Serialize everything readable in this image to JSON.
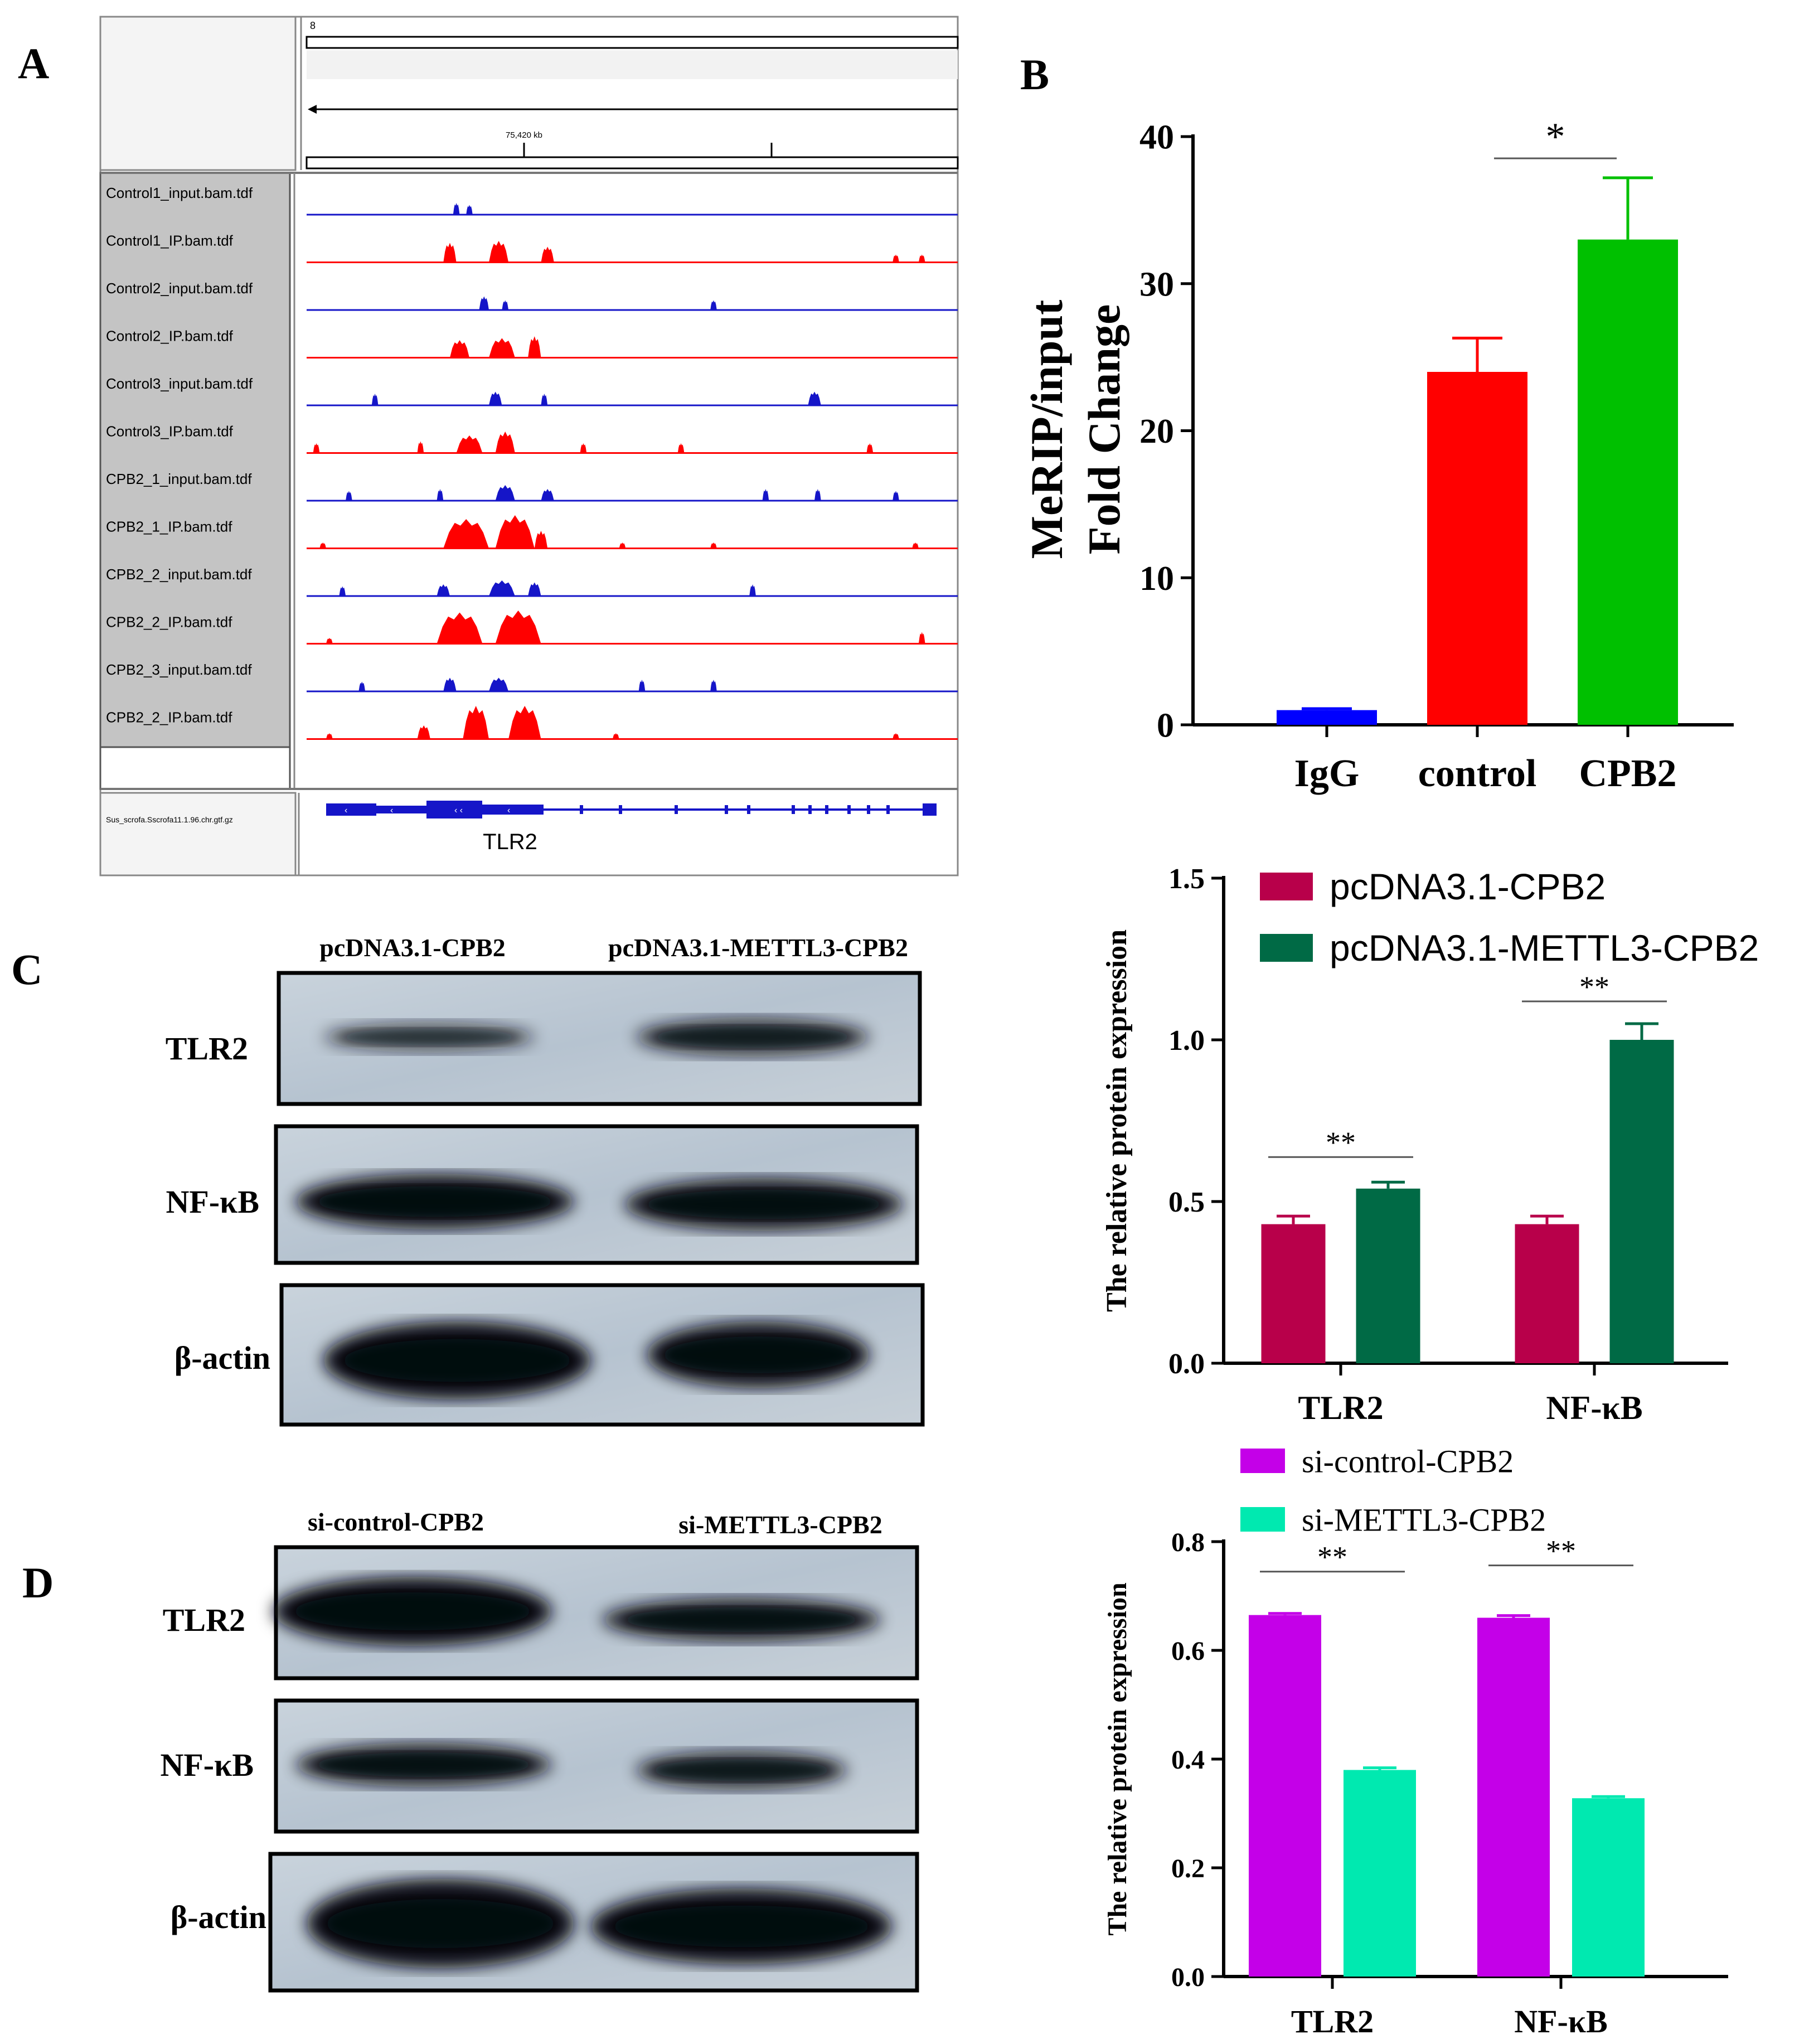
{
  "panels": {
    "a": "A",
    "b": "B",
    "c": "C",
    "d": "D"
  },
  "colors": {
    "igv_blue": "#1515c8",
    "igv_red": "#ff0000",
    "igv_gray": "#c4c4c4",
    "b_igg": "#0000ff",
    "b_control": "#ff0000",
    "b_cpb2": "#00c000",
    "crimson": "#b8004a",
    "dark_green": "#006a45",
    "magenta": "#c400e8",
    "aqua": "#00e9b0"
  },
  "igv": {
    "chrom": "8",
    "ruler": "75,420 kb",
    "gene_track": "Sus_scrofa.Sscrofa11.1.96.chr.gtf.gz",
    "gene": "TLR2",
    "tracks": [
      {
        "label": "Control1_input.bam.tdf",
        "color": "blue",
        "peaks": [
          [
            0.225,
            0.01,
            0.3
          ],
          [
            0.245,
            0.01,
            0.25
          ]
        ]
      },
      {
        "label": "Control1_IP.bam.tdf",
        "color": "red",
        "peaks": [
          [
            0.21,
            0.02,
            0.5
          ],
          [
            0.28,
            0.03,
            0.55
          ],
          [
            0.36,
            0.02,
            0.4
          ],
          [
            0.9,
            0.01,
            0.2
          ],
          [
            0.94,
            0.01,
            0.2
          ]
        ]
      },
      {
        "label": "Control2_input.bam.tdf",
        "color": "blue",
        "peaks": [
          [
            0.265,
            0.015,
            0.35
          ],
          [
            0.3,
            0.01,
            0.25
          ],
          [
            0.62,
            0.01,
            0.25
          ]
        ]
      },
      {
        "label": "Control2_IP.bam.tdf",
        "color": "red",
        "peaks": [
          [
            0.22,
            0.03,
            0.45
          ],
          [
            0.28,
            0.04,
            0.5
          ],
          [
            0.34,
            0.02,
            0.55
          ]
        ]
      },
      {
        "label": "Control3_input.bam.tdf",
        "color": "blue",
        "peaks": [
          [
            0.1,
            0.01,
            0.3
          ],
          [
            0.28,
            0.02,
            0.35
          ],
          [
            0.36,
            0.01,
            0.3
          ],
          [
            0.77,
            0.02,
            0.35
          ]
        ]
      },
      {
        "label": "Control3_IP.bam.tdf",
        "color": "red",
        "peaks": [
          [
            0.01,
            0.01,
            0.25
          ],
          [
            0.17,
            0.01,
            0.3
          ],
          [
            0.23,
            0.04,
            0.45
          ],
          [
            0.29,
            0.03,
            0.55
          ],
          [
            0.42,
            0.01,
            0.25
          ],
          [
            0.57,
            0.01,
            0.25
          ],
          [
            0.86,
            0.01,
            0.25
          ]
        ]
      },
      {
        "label": "CPB2_1_input.bam.tdf",
        "color": "blue",
        "peaks": [
          [
            0.06,
            0.01,
            0.25
          ],
          [
            0.2,
            0.01,
            0.3
          ],
          [
            0.29,
            0.03,
            0.4
          ],
          [
            0.36,
            0.02,
            0.3
          ],
          [
            0.7,
            0.01,
            0.3
          ],
          [
            0.78,
            0.01,
            0.3
          ],
          [
            0.9,
            0.01,
            0.25
          ]
        ]
      },
      {
        "label": "CPB2_1_IP.bam.tdf",
        "color": "red",
        "peaks": [
          [
            0.02,
            0.01,
            0.15
          ],
          [
            0.21,
            0.07,
            0.75
          ],
          [
            0.29,
            0.06,
            0.85
          ],
          [
            0.35,
            0.02,
            0.45
          ],
          [
            0.48,
            0.01,
            0.15
          ],
          [
            0.62,
            0.01,
            0.15
          ],
          [
            0.93,
            0.01,
            0.15
          ]
        ]
      },
      {
        "label": "CPB2_2_input.bam.tdf",
        "color": "blue",
        "peaks": [
          [
            0.05,
            0.01,
            0.25
          ],
          [
            0.2,
            0.02,
            0.3
          ],
          [
            0.28,
            0.04,
            0.4
          ],
          [
            0.34,
            0.02,
            0.35
          ],
          [
            0.68,
            0.01,
            0.3
          ]
        ]
      },
      {
        "label": "CPB2_2_IP.bam.tdf",
        "color": "red",
        "peaks": [
          [
            0.03,
            0.01,
            0.15
          ],
          [
            0.2,
            0.07,
            0.8
          ],
          [
            0.29,
            0.07,
            0.85
          ],
          [
            0.94,
            0.01,
            0.3
          ]
        ]
      },
      {
        "label": "CPB2_3_input.bam.tdf",
        "color": "blue",
        "peaks": [
          [
            0.08,
            0.01,
            0.25
          ],
          [
            0.21,
            0.02,
            0.35
          ],
          [
            0.28,
            0.03,
            0.35
          ],
          [
            0.51,
            0.01,
            0.3
          ],
          [
            0.62,
            0.01,
            0.3
          ]
        ]
      },
      {
        "label": "CPB2_2_IP.bam.tdf",
        "color": "red",
        "peaks": [
          [
            0.03,
            0.01,
            0.15
          ],
          [
            0.17,
            0.02,
            0.35
          ],
          [
            0.24,
            0.04,
            0.85
          ],
          [
            0.31,
            0.05,
            0.85
          ],
          [
            0.47,
            0.01,
            0.15
          ],
          [
            0.9,
            0.01,
            0.15
          ]
        ]
      }
    ]
  },
  "blots": {
    "c_labels": [
      "pcDNA3.1-CPB2",
      "pcDNA3.1-METTL3-CPB2"
    ],
    "c_rows": [
      "TLR2",
      "NF-κB",
      "β-actin"
    ],
    "d_labels": [
      "si-control-CPB2",
      "si-METTL3-CPB2"
    ],
    "d_rows": [
      "TLR2",
      "NF-κB",
      "β-actin"
    ]
  },
  "chart_data": [
    {
      "panel": "B",
      "type": "bar",
      "categories": [
        "IgG",
        "control",
        "CPB2"
      ],
      "values": [
        1,
        24,
        33
      ],
      "errors": [
        0.1,
        2.3,
        4.2
      ],
      "ylabel": "MeRIP/input",
      "ylabel2": "Fold Change",
      "ylim": [
        0,
        40
      ],
      "yticks": [
        0,
        10,
        20,
        30,
        40
      ],
      "annotations": [
        {
          "text": "*",
          "between": [
            "control",
            "CPB2"
          ]
        }
      ]
    },
    {
      "panel": "C",
      "type": "bar",
      "categories": [
        "TLR2",
        "NF-κB"
      ],
      "series": [
        {
          "name": "pcDNA3.1-CPB2",
          "values": [
            0.43,
            0.43
          ],
          "errors": [
            0.025,
            0.025
          ]
        },
        {
          "name": "pcDNA3.1-METTL3-CPB2",
          "values": [
            0.54,
            1.0
          ],
          "errors": [
            0.02,
            0.05
          ]
        }
      ],
      "ylabel": "The relative protein expression",
      "ylim": [
        0,
        1.5
      ],
      "yticks": [
        "0.0",
        "0.5",
        "1.0",
        "1.5"
      ],
      "annotations": [
        {
          "text": "**",
          "category": "TLR2"
        },
        {
          "text": "**",
          "category": "NF-κB"
        }
      ]
    },
    {
      "panel": "D",
      "type": "bar",
      "categories": [
        "TLR2",
        "NF-κB"
      ],
      "series": [
        {
          "name": "si-control-CPB2",
          "values": [
            0.665,
            0.66
          ],
          "errors": [
            0.003,
            0.004
          ]
        },
        {
          "name": "si-METTL3-CPB2",
          "values": [
            0.38,
            0.328
          ],
          "errors": [
            0.004,
            0.003
          ]
        }
      ],
      "ylabel": "The relative protein expression",
      "ylim": [
        0,
        0.8
      ],
      "yticks": [
        "0.0",
        "0.2",
        "0.4",
        "0.6",
        "0.8"
      ],
      "annotations": [
        {
          "text": "**",
          "category": "TLR2"
        },
        {
          "text": "**",
          "category": "NF-κB"
        }
      ]
    }
  ]
}
